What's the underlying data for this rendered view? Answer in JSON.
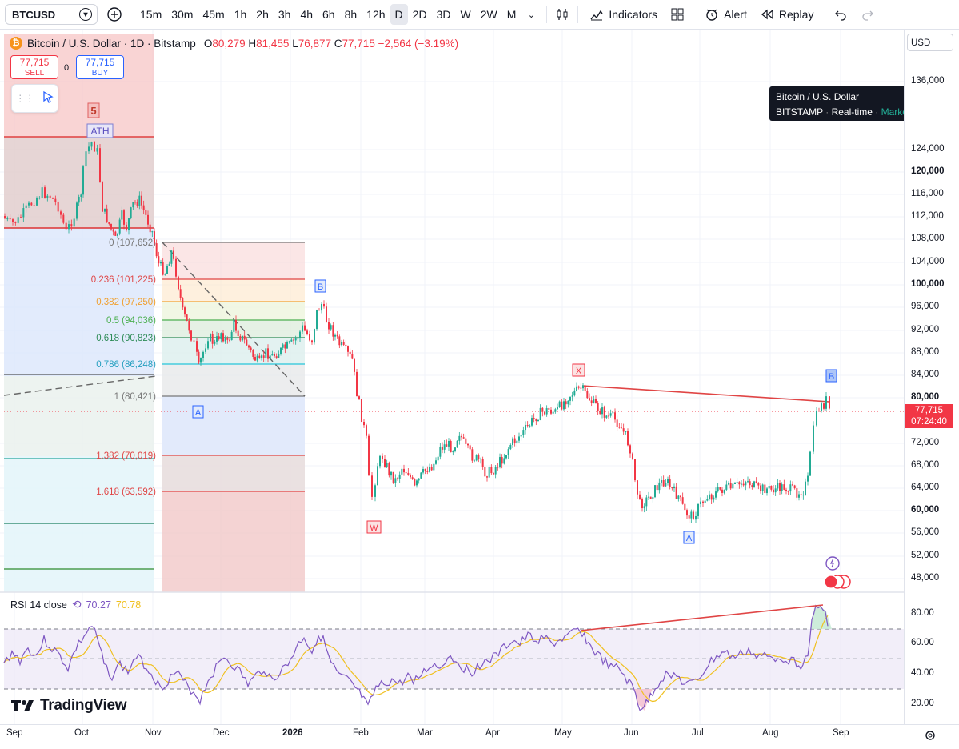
{
  "toolbar": {
    "symbol": "BTCUSD",
    "intervals": [
      "15m",
      "30m",
      "45m",
      "1h",
      "2h",
      "3h",
      "4h",
      "6h",
      "8h",
      "12h",
      "D",
      "2D",
      "3D",
      "W",
      "2W",
      "M"
    ],
    "active_interval": "D",
    "indicators_label": "Indicators",
    "alert_label": "Alert",
    "replay_label": "Replay"
  },
  "legend": {
    "title": "Bitcoin / U.S. Dollar · 1D · Bitstamp",
    "open_label": "O",
    "open": "80,279",
    "high_label": "H",
    "high": "81,455",
    "low_label": "L",
    "low": "76,877",
    "close_label": "C",
    "close": "77,715",
    "change": "−2,564 (−3.19%)"
  },
  "trade": {
    "sell_price": "77,715",
    "sell_label": "SELL",
    "spread": "0",
    "buy_price": "77,715",
    "buy_label": "BUY"
  },
  "tooltip": {
    "line1": "Bitcoin / U.S. Dollar",
    "exchange": "BITSTAMP",
    "realtime": "Real-time",
    "market": "Market open"
  },
  "currency": "USD",
  "price_axis": [
    "136,000",
    "124,000",
    "120,000",
    "116,000",
    "112,000",
    "108,000",
    "104,000",
    "100,000",
    "96,000",
    "92,000",
    "88,000",
    "84,000",
    "80,000",
    "72,000",
    "68,000",
    "64,000",
    "60,000",
    "56,000",
    "52,000",
    "48,000"
  ],
  "current_price": {
    "price": "77,715",
    "countdown": "07:24:40"
  },
  "rsi": {
    "label": "RSI 14 close",
    "value1": "70.27",
    "value2": "70.78",
    "axis": [
      "80.00",
      "60.00",
      "40.00",
      "20.00"
    ]
  },
  "time_axis": [
    "Sep",
    "Oct",
    "Nov",
    "Dec",
    "2026",
    "Feb",
    "Mar",
    "Apr",
    "May",
    "Jun",
    "Jul",
    "Aug",
    "Sep"
  ],
  "fib_labels": [
    "0 (107,652)",
    "0.236 (101,225)",
    "0.382 (97,250)",
    "0.5 (94,036)",
    "0.618 (90,823)",
    "0.786 (86,248)",
    "1 (80,421)",
    "1.382 (70,019)",
    "1.618 (63,592)"
  ],
  "wave_labels": {
    "five": "5",
    "ath": "ATH",
    "b1": "B",
    "a1": "A",
    "w": "W",
    "x": "X",
    "a2": "A",
    "b2": "B"
  },
  "brand": "TradingView",
  "colors": {
    "up": "#22ab94",
    "down": "#f23645",
    "rsi": "#7e57c2"
  }
}
